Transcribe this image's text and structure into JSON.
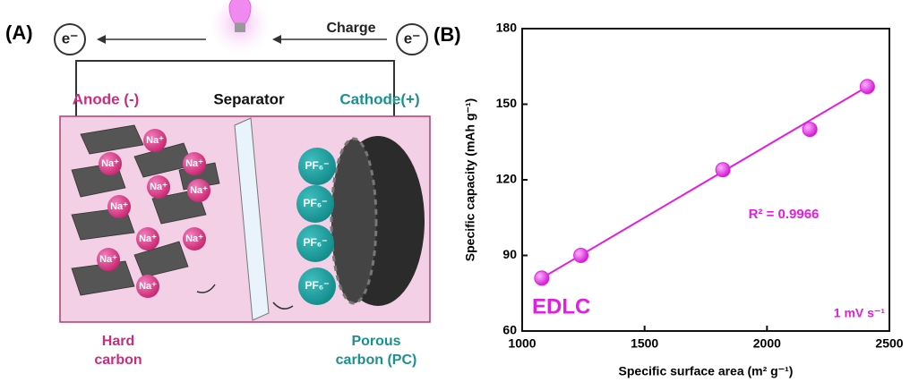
{
  "diagram": {
    "panel_label": "(A)",
    "electron_left": "e⁻",
    "electron_right": "e⁻",
    "charge": "Charge",
    "anode": "Anode (-)",
    "separator": "Separator",
    "cathode": "Cathode(+)",
    "sodium_ions": [
      "Na⁺",
      "Na⁺",
      "Na⁺",
      "Na⁺",
      "Na⁺",
      "Na⁺",
      "Na⁺",
      "Na⁺",
      "Na⁺",
      "Na⁺"
    ],
    "anions": [
      "PF₆⁻",
      "PF₆⁻",
      "PF₆⁻",
      "PF₆⁻"
    ],
    "hard_carbon": [
      "Hard",
      "carbon"
    ],
    "porous_carbon": [
      "Porous",
      "carbon (PC)"
    ]
  },
  "chart_data": {
    "type": "scatter",
    "panel_label": "(B)",
    "x_label": "Specific surface area (m² g⁻¹)",
    "y_label": "Specific capacity (mAh g⁻¹)",
    "annotations": [
      "R² = 0.9966",
      "EDLC",
      "1 mV s⁻¹"
    ],
    "x": [
      1080,
      1240,
      1820,
      2175,
      2410
    ],
    "values": [
      81,
      90,
      124,
      140,
      157
    ],
    "color": "#e21ee2",
    "fit": {
      "x": [
        1080,
        2410
      ],
      "values": [
        81,
        157
      ]
    },
    "xlim": [
      1000,
      2500
    ],
    "ylim": [
      60,
      180
    ],
    "xticks": [
      1000,
      1500,
      2000,
      2500
    ],
    "yticks": [
      60,
      90,
      120,
      150,
      180
    ]
  }
}
